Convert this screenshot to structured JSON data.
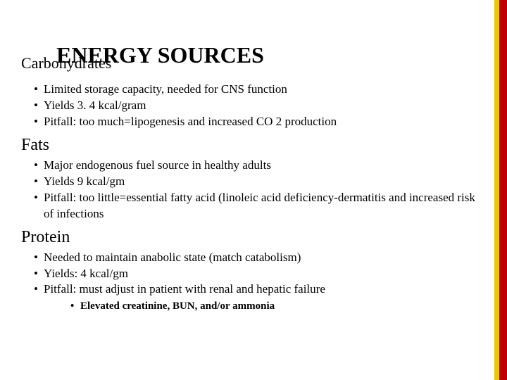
{
  "colors": {
    "side_yellow": "#f2c400",
    "side_red": "#c00000",
    "text": "#000000",
    "background": "#ffffff"
  },
  "title": "ENERGY SOURCES",
  "sections": [
    {
      "heading": "Carbohydrates",
      "overlap": true,
      "bullets": [
        "Limited storage capacity, needed for CNS function",
        "Yields 3. 4 kcal/gram",
        "Pitfall: too much=lipogenesis and increased CO 2 production"
      ]
    },
    {
      "heading": "Fats",
      "bullets": [
        "Major endogenous fuel source in healthy adults",
        "Yields 9 kcal/gm",
        "Pitfall: too little=essential fatty acid (linoleic acid deficiency-dermatitis and increased risk of infections"
      ]
    },
    {
      "heading": "Protein",
      "bullets": [
        "Needed to maintain anabolic state (match catabolism)",
        "Yields: 4 kcal/gm",
        "Pitfall: must adjust in patient with renal and hepatic failure"
      ],
      "sub_bullets": [
        "Elevated creatinine, BUN, and/or ammonia"
      ]
    }
  ]
}
